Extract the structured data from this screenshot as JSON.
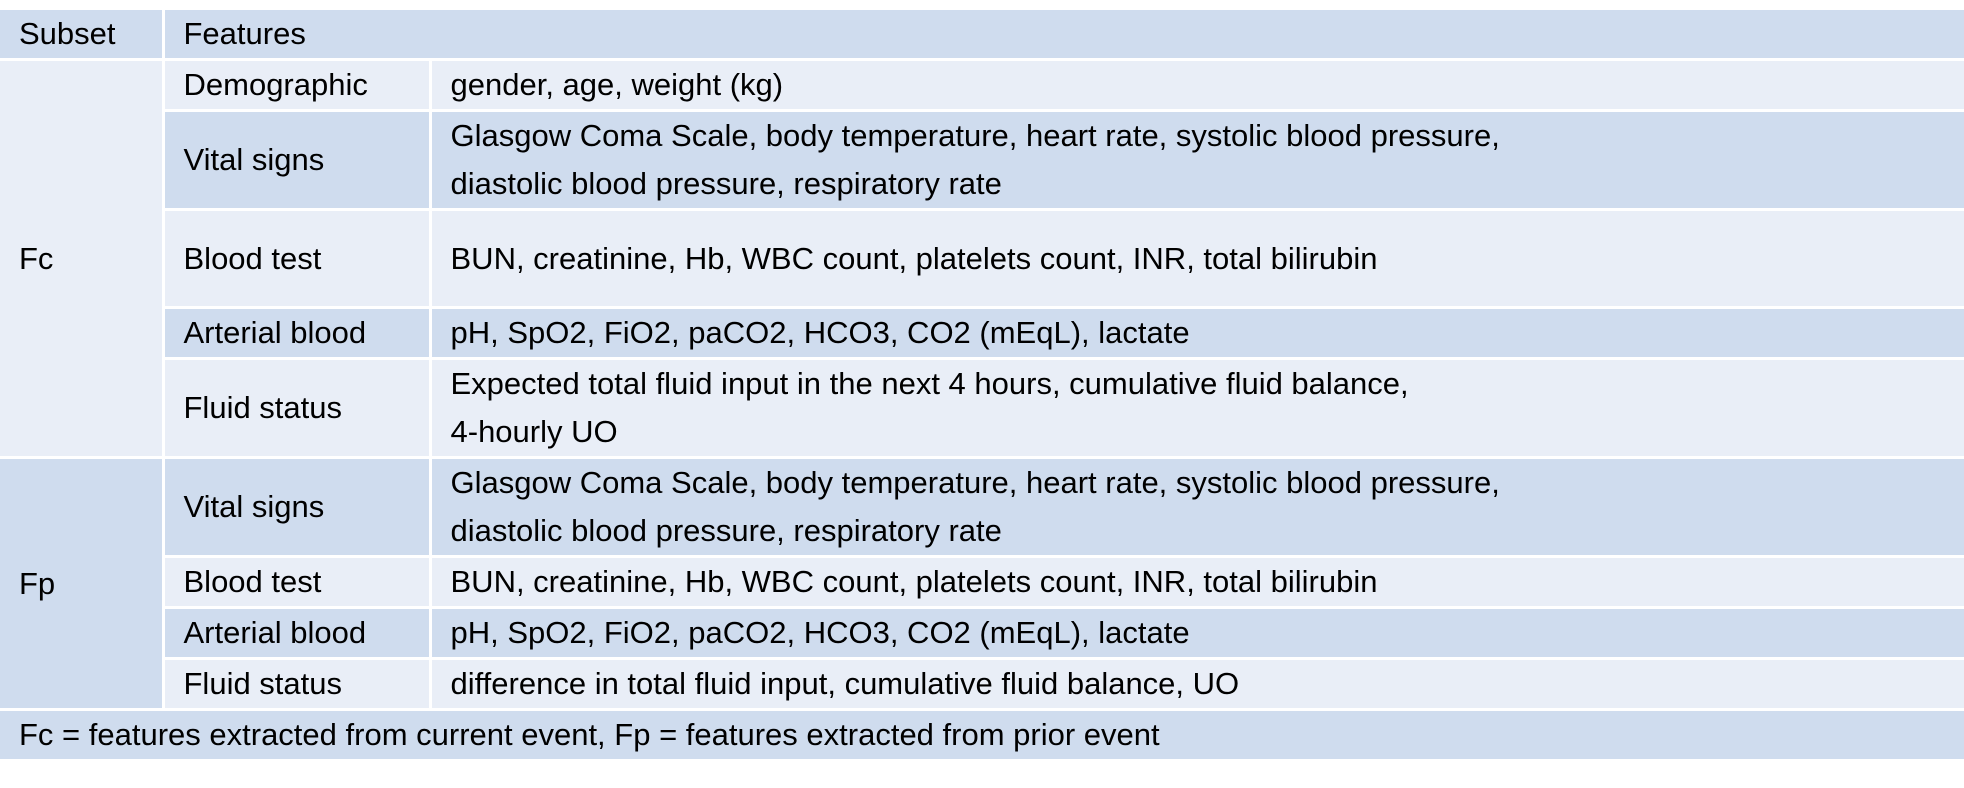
{
  "header": {
    "subset": "Subset",
    "features": "Features"
  },
  "groups": [
    {
      "subset": "Fc",
      "rows": [
        {
          "category": "Demographic",
          "lines": [
            "gender, age, weight (kg)"
          ]
        },
        {
          "category": "Vital signs",
          "lines": [
            "Glasgow Coma Scale, body temperature, heart rate, systolic blood pressure,",
            "diastolic blood pressure, respiratory rate"
          ]
        },
        {
          "category": "Blood test",
          "lines": [
            "BUN, creatinine, Hb, WBC count, platelets count, INR, total bilirubin"
          ]
        },
        {
          "category": "Arterial blood",
          "lines": [
            "pH, SpO2, FiO2, paCO2, HCO3, CO2 (mEqL), lactate"
          ]
        },
        {
          "category": "Fluid status",
          "lines": [
            "Expected total fluid input in the next 4 hours, cumulative fluid balance,",
            "4-hourly UO"
          ]
        }
      ]
    },
    {
      "subset": "Fp",
      "rows": [
        {
          "category": "Vital signs",
          "lines": [
            "Glasgow Coma Scale, body temperature, heart rate, systolic blood pressure,",
            "diastolic blood pressure, respiratory rate"
          ]
        },
        {
          "category": "Blood test",
          "lines": [
            "BUN, creatinine, Hb, WBC count, platelets count, INR, total bilirubin"
          ]
        },
        {
          "category": "Arterial blood",
          "lines": [
            "pH, SpO2, FiO2, paCO2, HCO3, CO2 (mEqL), lactate"
          ]
        },
        {
          "category": "Fluid status",
          "lines": [
            "difference in total fluid input, cumulative fluid balance, UO"
          ]
        }
      ]
    }
  ],
  "footnote": "Fc = features extracted from current event, Fp = features extracted from prior event"
}
